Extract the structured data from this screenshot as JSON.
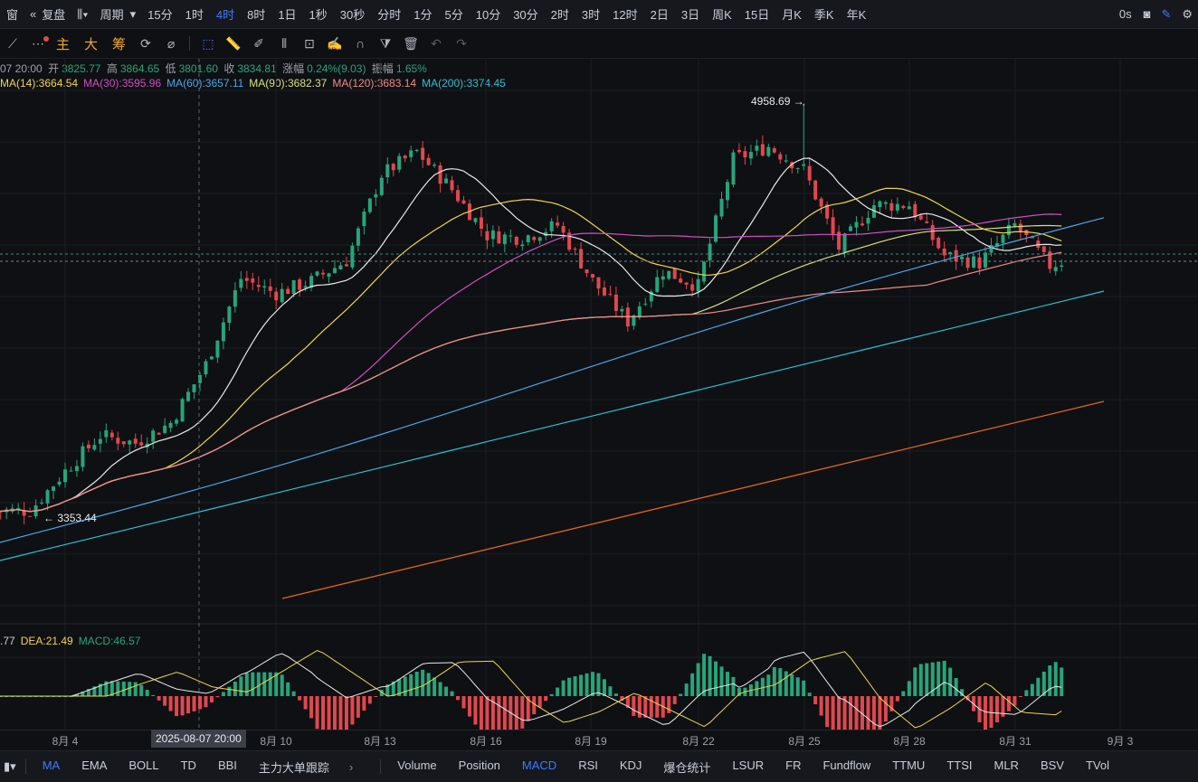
{
  "topbar": {
    "window_label": "窗",
    "replay_label": "复盘",
    "period_label": "周期",
    "intervals": [
      "15分",
      "1时",
      "4时",
      "8时",
      "1日",
      "1秒",
      "30秒",
      "分时",
      "1分",
      "5分",
      "10分",
      "30分",
      "2时",
      "3时",
      "12时",
      "2日",
      "3日",
      "周K",
      "15日",
      "月K",
      "季K",
      "年K"
    ],
    "active_interval": "4时",
    "latency": "0s"
  },
  "toolbar": {
    "main_labels": [
      "主",
      "大",
      "筹"
    ]
  },
  "ohlc": {
    "time": "07 20:00",
    "open_label": "开",
    "open": "3825.77",
    "high_label": "高",
    "high": "3864.65",
    "low_label": "低",
    "low": "3801.60",
    "close_label": "收",
    "close": "3834.81",
    "change_label": "涨幅",
    "change": "0.24%(9.03)",
    "amp_label": "振幅",
    "amp": "1.65%"
  },
  "ma_legend": [
    {
      "text": "MA(14):3664.54",
      "color": "#f0d64a"
    },
    {
      "text": "MA(30):3595.96",
      "color": "#d04fc4"
    },
    {
      "text": "MA(60):3657.11",
      "color": "#4aa7e8"
    },
    {
      "text": "MA(90):3682.37",
      "color": "#d8e07a"
    },
    {
      "text": "MA(120):3683.14",
      "color": "#f08a8a"
    },
    {
      "text": "MA(200):3374.45",
      "color": "#27c2d6"
    }
  ],
  "macd_legend": [
    {
      "text": ".77",
      "color": "#c8ced8"
    },
    {
      "text": "DEA:21.49",
      "color": "#f0d64a"
    },
    {
      "text": "MACD:46.57",
      "color": "#27a57a"
    }
  ],
  "annotations": {
    "high": "4958.69",
    "low": "3353.44"
  },
  "crosshair_date": "2025-08-07 20:00",
  "x_axis": [
    "8月 4",
    "8月 10",
    "8月 13",
    "8月 16",
    "8月 19",
    "8月 22",
    "8月 25",
    "8月 28",
    "8月 31",
    "9月 3"
  ],
  "bottom_indicators": [
    "MA",
    "EMA",
    "BOLL",
    "TD",
    "BBI",
    "主力大单跟踪",
    "Volume",
    "Position",
    "MACD",
    "RSI",
    "KDJ",
    "爆仓统计",
    "LSUR",
    "FR",
    "Fundflow",
    "TTMU",
    "TTSI",
    "MLR",
    "BSV",
    "TVol"
  ],
  "active_main_indicator": "MA",
  "active_sub_indicator": "MACD",
  "colors": {
    "up": "#27a57a",
    "down": "#e2474e",
    "accent": "#3d7bff",
    "ma720": "#e0651e"
  },
  "chart_data": {
    "type": "candlestick",
    "x_dates": [
      "8月 4",
      "8月 10",
      "8月 13",
      "8月 16",
      "8月 19",
      "8月 22",
      "8月 25",
      "8月 28",
      "8月 31",
      "9月 3"
    ],
    "close_series_anchors": [
      [
        "8月 3",
        3353
      ],
      [
        "8月 4",
        3510
      ],
      [
        "8月 5",
        3650
      ],
      [
        "8月 6",
        3620
      ],
      [
        "8月 7",
        3700
      ],
      [
        "8月 8",
        3930
      ],
      [
        "8月 9",
        4270
      ],
      [
        "8月 10",
        4210
      ],
      [
        "8月 11",
        4260
      ],
      [
        "8月 12",
        4340
      ],
      [
        "8月 13",
        4680
      ],
      [
        "8月 14",
        4770
      ],
      [
        "8月 15",
        4620
      ],
      [
        "8月 16",
        4440
      ],
      [
        "8月 17",
        4430
      ],
      [
        "8月 18",
        4480
      ],
      [
        "8月 19",
        4260
      ],
      [
        "8月 20",
        4100
      ],
      [
        "8月 21",
        4300
      ],
      [
        "8月 22",
        4240
      ],
      [
        "8月 23",
        4740
      ],
      [
        "8月 24",
        4790
      ],
      [
        "8月 25",
        4700
      ],
      [
        "8月 26",
        4390
      ],
      [
        "8月 27",
        4560
      ],
      [
        "8月 28",
        4560
      ],
      [
        "8月 29",
        4360
      ],
      [
        "8月 30",
        4330
      ],
      [
        "8月 31",
        4480
      ],
      [
        "9月 1",
        4320
      ],
      [
        "9月 2",
        4370
      ]
    ],
    "high_mark": 4958.69,
    "low_mark": 3353.44,
    "ma_lines": [
      "MA(14)",
      "MA(30)",
      "MA(60)",
      "MA(90)",
      "MA(120)",
      "MA(200)"
    ]
  }
}
